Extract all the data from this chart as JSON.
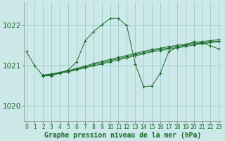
{
  "title": "Graphe pression niveau de la mer (hPa)",
  "background_color": "#cce8e8",
  "grid_color": "#99cccc",
  "line_color": "#1a6b2a",
  "spine_color": "#888888",
  "xlim": [
    -0.3,
    23.3
  ],
  "ylim": [
    1019.62,
    1022.58
  ],
  "yticks": [
    1020,
    1021,
    1022
  ],
  "xticks": [
    0,
    1,
    2,
    3,
    4,
    5,
    6,
    7,
    8,
    9,
    10,
    11,
    12,
    13,
    14,
    15,
    16,
    17,
    18,
    19,
    20,
    21,
    22,
    23
  ],
  "xlabel_fontsize": 7.0,
  "ytick_fontsize": 7.5,
  "xtick_fontsize": 5.5,
  "series": [
    {
      "x": [
        0,
        1,
        2,
        3,
        4,
        5,
        6,
        7,
        8,
        9,
        10,
        11,
        12,
        13,
        14,
        15,
        16,
        17,
        18,
        19,
        20,
        21,
        22,
        23
      ],
      "y": [
        1021.35,
        1021.0,
        1020.75,
        1020.75,
        1020.82,
        1020.9,
        1021.1,
        1021.62,
        1021.85,
        1022.02,
        1022.18,
        1022.18,
        1022.0,
        1021.05,
        1020.48,
        1020.5,
        1020.82,
        1021.35,
        1021.47,
        1021.52,
        1021.6,
        1021.58,
        1021.5,
        1021.42
      ],
      "linestyle": "-",
      "marker": "+"
    },
    {
      "x": [
        2,
        3,
        4,
        5,
        6,
        7,
        8,
        9,
        10,
        11,
        12,
        13,
        14,
        15,
        16,
        17,
        18,
        19,
        20,
        21,
        22,
        23
      ],
      "y": [
        1020.75,
        1020.78,
        1020.82,
        1020.85,
        1020.9,
        1020.95,
        1021.0,
        1021.05,
        1021.1,
        1021.15,
        1021.2,
        1021.25,
        1021.3,
        1021.35,
        1021.38,
        1021.42,
        1021.45,
        1021.48,
        1021.52,
        1021.55,
        1021.58,
        1021.6
      ],
      "linestyle": "-",
      "marker": "+"
    },
    {
      "x": [
        2,
        3,
        4,
        5,
        6,
        7,
        8,
        9,
        10,
        11,
        12,
        13,
        14,
        15,
        16,
        17,
        18,
        19,
        20,
        21,
        22,
        23
      ],
      "y": [
        1020.76,
        1020.79,
        1020.83,
        1020.87,
        1020.92,
        1020.97,
        1021.03,
        1021.08,
        1021.13,
        1021.18,
        1021.23,
        1021.28,
        1021.33,
        1021.38,
        1021.41,
        1021.45,
        1021.48,
        1021.51,
        1021.55,
        1021.57,
        1021.6,
        1021.62
      ],
      "linestyle": "-",
      "marker": "+"
    },
    {
      "x": [
        2,
        3,
        4,
        5,
        6,
        7,
        8,
        9,
        10,
        11,
        12,
        13,
        14,
        15,
        16,
        17,
        18,
        19,
        20,
        21,
        22,
        23
      ],
      "y": [
        1020.77,
        1020.8,
        1020.84,
        1020.88,
        1020.94,
        1020.99,
        1021.06,
        1021.11,
        1021.16,
        1021.21,
        1021.26,
        1021.31,
        1021.36,
        1021.41,
        1021.44,
        1021.48,
        1021.51,
        1021.54,
        1021.58,
        1021.61,
        1021.63,
        1021.65
      ],
      "linestyle": "-",
      "marker": "+"
    }
  ]
}
